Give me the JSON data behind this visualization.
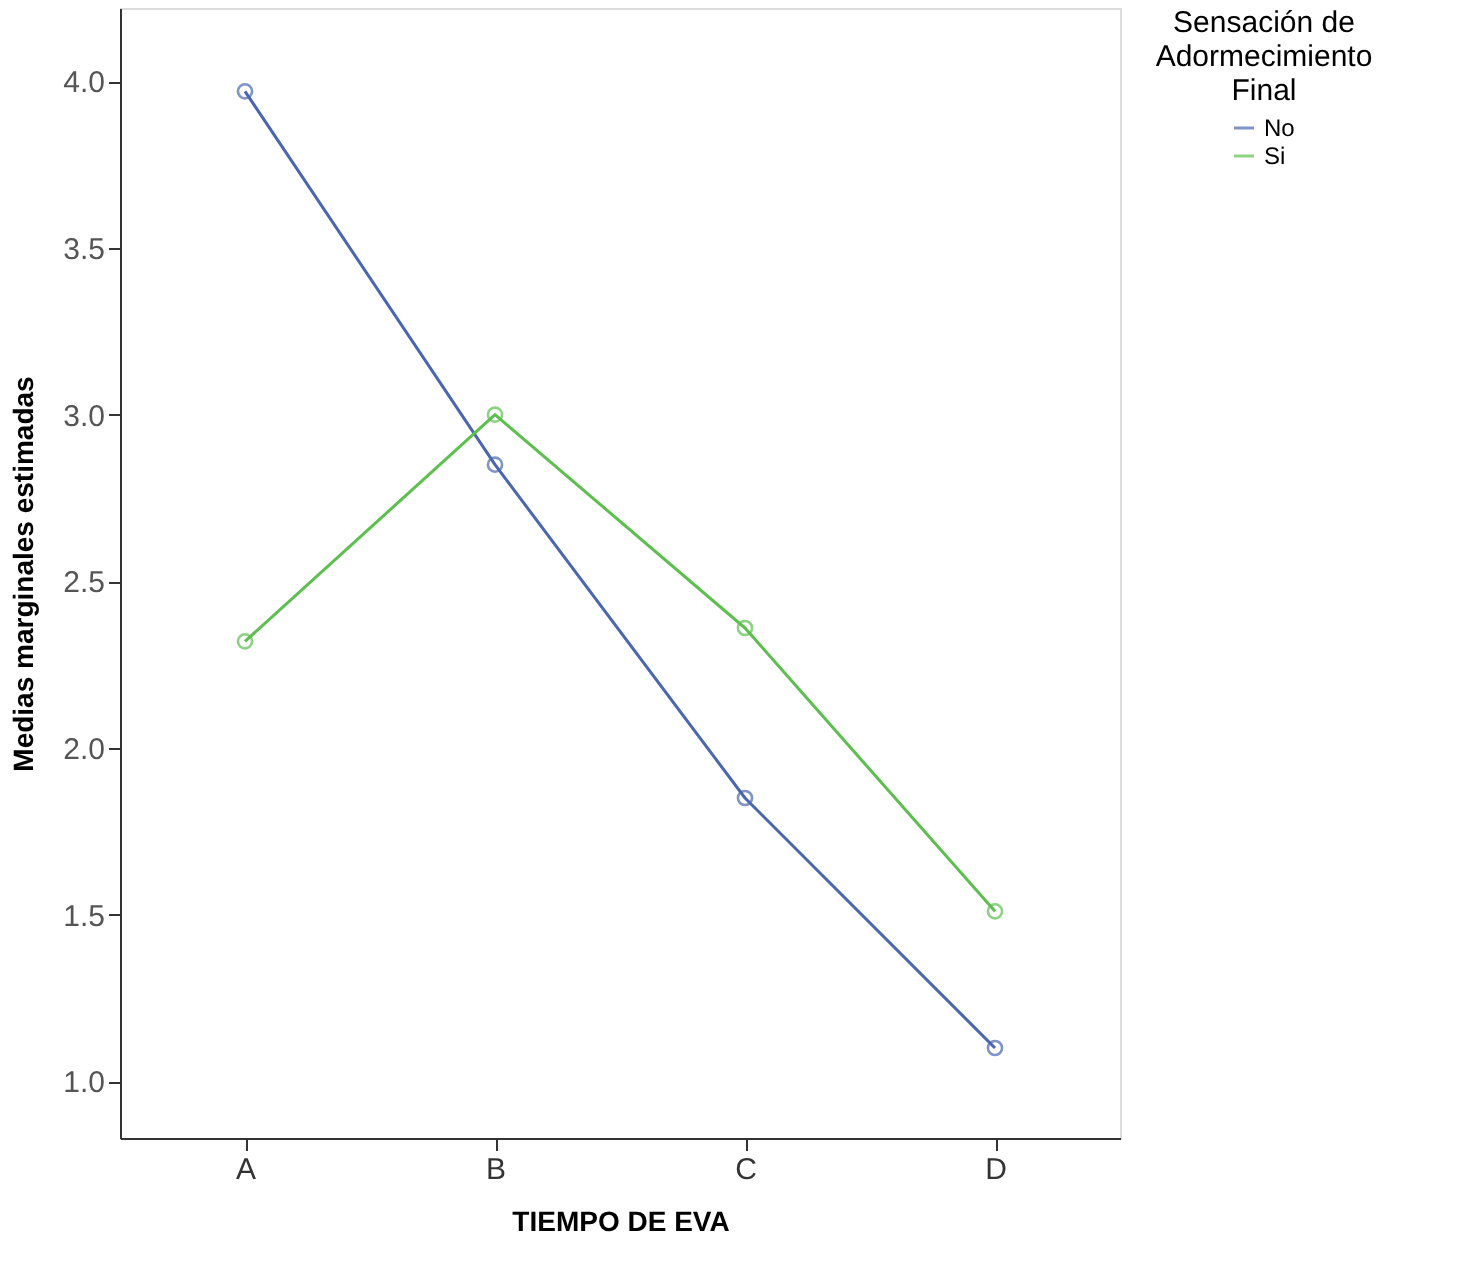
{
  "chart_data": {
    "type": "line",
    "xlabel": "TIEMPO DE EVA",
    "ylabel": "Medias marginales estimadas",
    "legend_title": "Sensación de Adormecimiento Final",
    "categories": [
      "A",
      "B",
      "C",
      "D"
    ],
    "series": [
      {
        "name": "No",
        "color": "#4a66b0",
        "values": [
          3.97,
          2.85,
          1.85,
          1.1
        ]
      },
      {
        "name": "Si",
        "color": "#5cbf4e",
        "values": [
          2.32,
          3.0,
          2.36,
          1.51
        ]
      }
    ],
    "ylim": [
      0.83,
      4.22
    ],
    "yticks": [
      {
        "value": 1.0,
        "label": "1.0"
      },
      {
        "value": 1.5,
        "label": "1.5"
      },
      {
        "value": 2.0,
        "label": "2.0"
      },
      {
        "value": 2.5,
        "label": "2.5"
      },
      {
        "value": 3.0,
        "label": "3.0"
      },
      {
        "value": 3.5,
        "label": "3.5"
      },
      {
        "value": 4.0,
        "label": "4.0"
      }
    ],
    "grid": false,
    "legend": "top right",
    "marker": "circle",
    "line_style": "solid"
  }
}
